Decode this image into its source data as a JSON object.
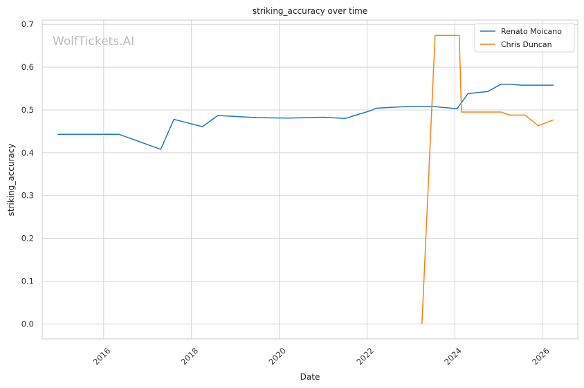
{
  "chart_data": {
    "type": "line",
    "title": "striking_accuracy over time",
    "xlabel": "Date",
    "ylabel": "striking_accuracy",
    "watermark": "WolfTickets.AI",
    "xlim": [
      2014.6,
      2026.8
    ],
    "ylim": [
      -0.035,
      0.71
    ],
    "x_ticks": [
      2016,
      2018,
      2020,
      2022,
      2024,
      2026
    ],
    "x_tick_labels": [
      "2016",
      "2018",
      "2020",
      "2022",
      "2024",
      "2026"
    ],
    "y_ticks": [
      0.0,
      0.1,
      0.2,
      0.3,
      0.4,
      0.5,
      0.6,
      0.7
    ],
    "y_tick_labels": [
      "0.0",
      "0.1",
      "0.2",
      "0.3",
      "0.4",
      "0.5",
      "0.6",
      "0.7"
    ],
    "grid": true,
    "legend_position": "top-right",
    "series": [
      {
        "name": "Renato Moicano",
        "color": "#1f77b4",
        "x": [
          2014.95,
          2016.35,
          2017.3,
          2017.6,
          2018.25,
          2018.6,
          2019.5,
          2020.2,
          2021.0,
          2021.5,
          2022.1,
          2022.2,
          2022.9,
          2023.5,
          2024.05,
          2024.3,
          2024.75,
          2025.05,
          2025.25,
          2025.5,
          2026.25
        ],
        "y": [
          0.443,
          0.443,
          0.408,
          0.478,
          0.461,
          0.487,
          0.482,
          0.481,
          0.483,
          0.48,
          0.499,
          0.504,
          0.508,
          0.508,
          0.503,
          0.538,
          0.543,
          0.56,
          0.56,
          0.558,
          0.558
        ]
      },
      {
        "name": "Chris Duncan",
        "color": "#ff7f0e",
        "x": [
          2023.25,
          2023.55,
          2024.1,
          2024.15,
          2025.05,
          2025.25,
          2025.6,
          2025.9,
          2026.25
        ],
        "y": [
          0.0,
          0.674,
          0.674,
          0.495,
          0.495,
          0.488,
          0.488,
          0.463,
          0.477
        ]
      }
    ]
  }
}
